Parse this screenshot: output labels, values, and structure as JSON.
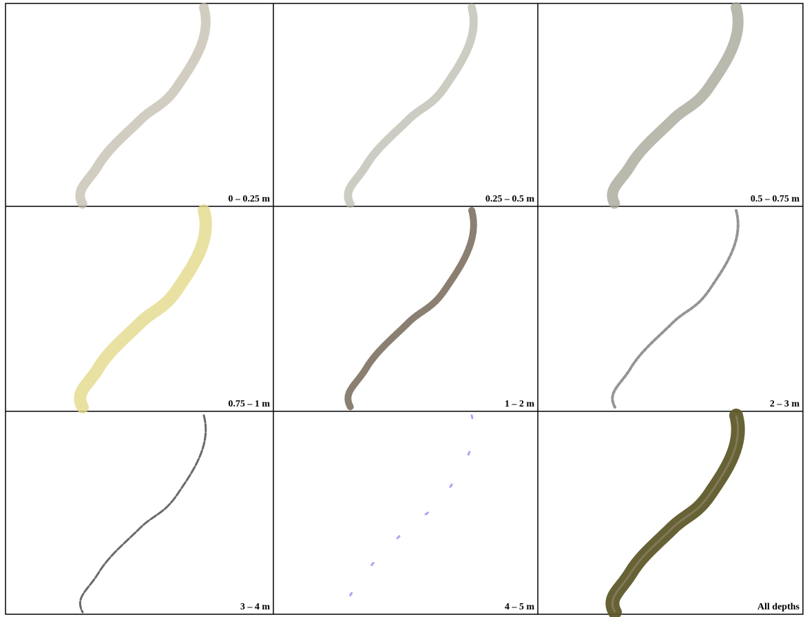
{
  "panels": [
    {
      "label": "0 – 0.25 m"
    },
    {
      "label": "0.25 – 0.5 m"
    },
    {
      "label": "0.5 – 0.75 m"
    },
    {
      "label": "0.75 – 1 m"
    },
    {
      "label": "1 – 2 m"
    },
    {
      "label": "2 – 3 m"
    },
    {
      "label": "3 – 4 m"
    },
    {
      "label": "4 – 5 m"
    },
    {
      "label": "All depths"
    }
  ]
}
